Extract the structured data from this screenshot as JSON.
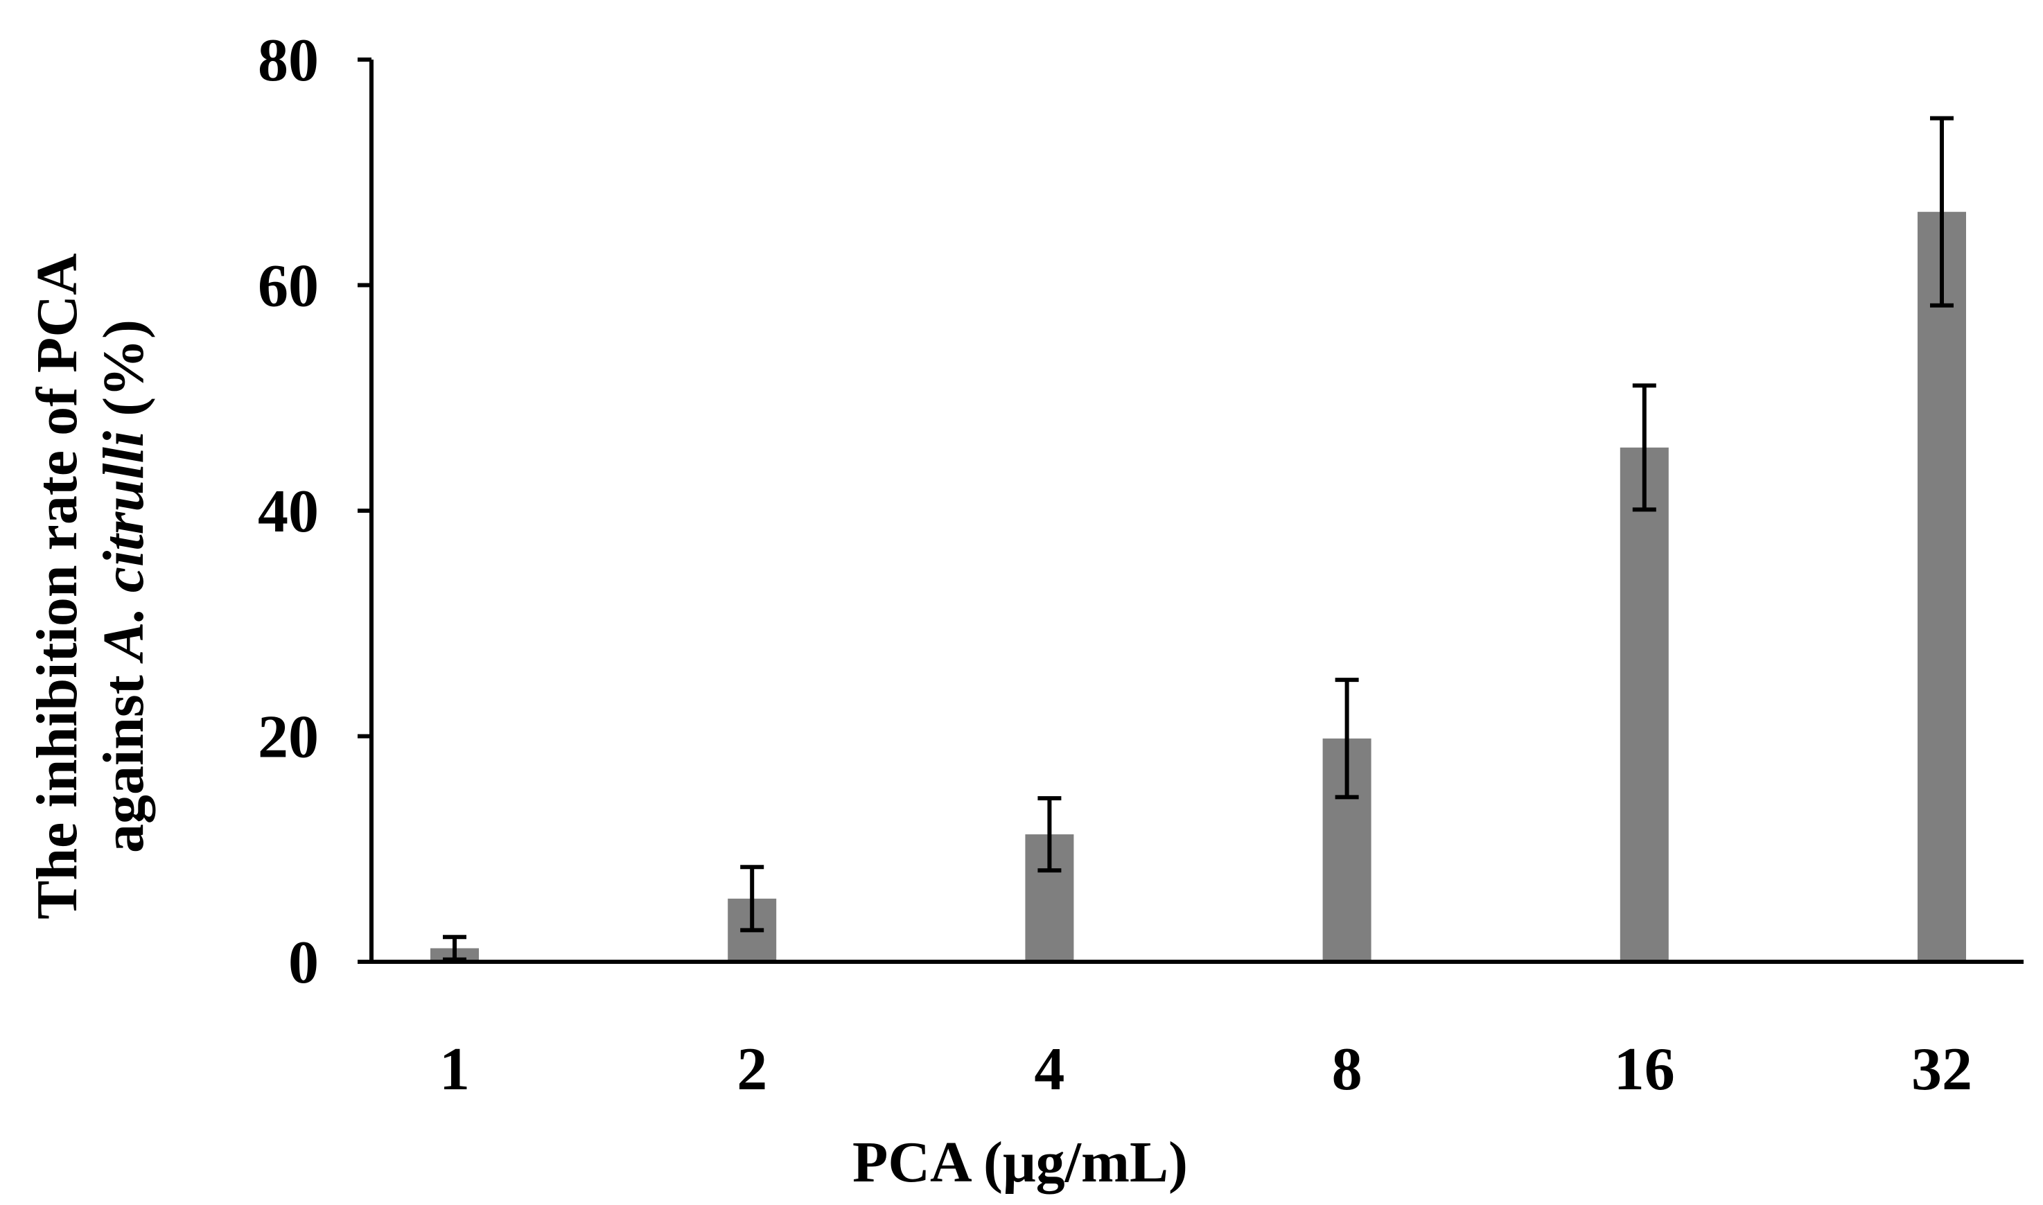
{
  "chart_data": {
    "type": "bar",
    "title": "",
    "categories": [
      "1",
      "2",
      "4",
      "8",
      "16",
      "32"
    ],
    "values": [
      1.2,
      5.6,
      11.3,
      19.8,
      45.6,
      66.5
    ],
    "errors": [
      1.0,
      2.8,
      3.2,
      5.2,
      5.5,
      8.3
    ],
    "xlabel": "PCA  (μg/mL)",
    "ylabel": {
      "line1": "The inhibition rate of PCA",
      "line2_prefix": "against ",
      "line2_italic": "A. citrulli",
      "line2_suffix": " (%)"
    },
    "ylim": [
      0,
      80
    ],
    "yticks": [
      "0",
      "20",
      "40",
      "60",
      "80"
    ],
    "bar_color": "#7f7f7f",
    "grid": false
  }
}
